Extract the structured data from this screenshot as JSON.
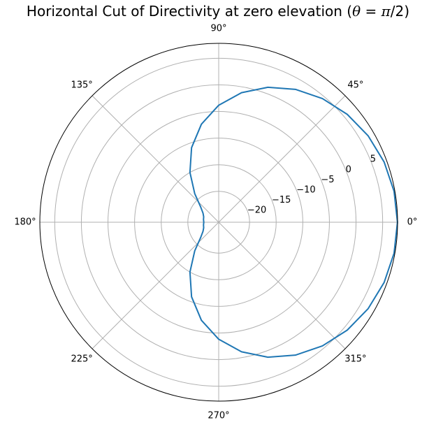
{
  "chart_data": {
    "type": "polar-line",
    "title": {
      "prefix": "Horizontal Cut of Directivity at zero elevation (",
      "math_symbol": "θ",
      "math_rest": " = ",
      "math_pi": "π",
      "math_end": "/2)"
    },
    "angle_unit": "degrees",
    "angle_ticks": [
      0,
      45,
      90,
      135,
      180,
      225,
      270,
      315
    ],
    "angle_tick_labels": [
      "0°",
      "45°",
      "90°",
      "135°",
      "180°",
      "225°",
      "270°",
      "315°"
    ],
    "r_ticks": [
      -20,
      -15,
      -10,
      -5,
      0,
      5
    ],
    "r_tick_labels": [
      "−20",
      "−15",
      "−10",
      "−5",
      "0",
      "5"
    ],
    "rlim": [
      -25.8,
      7.8
    ],
    "grid": true,
    "series": [
      {
        "color": "#1f77b4",
        "points": [
          [
            0,
            7.78
          ],
          [
            10,
            7.65
          ],
          [
            20,
            7.27
          ],
          [
            30,
            6.63
          ],
          [
            40,
            5.72
          ],
          [
            50,
            4.52
          ],
          [
            60,
            3.02
          ],
          [
            70,
            1.17
          ],
          [
            80,
            -1.09
          ],
          [
            90,
            -3.83
          ],
          [
            100,
            -7.1
          ],
          [
            110,
            -10.9
          ],
          [
            120,
            -15.0
          ],
          [
            130,
            -18.8
          ],
          [
            140,
            -21.4
          ],
          [
            150,
            -22.4
          ],
          [
            160,
            -22.8
          ],
          [
            170,
            -22.9
          ],
          [
            180,
            -23.0
          ],
          [
            190,
            -22.9
          ],
          [
            200,
            -22.8
          ],
          [
            210,
            -22.4
          ],
          [
            220,
            -21.4
          ],
          [
            230,
            -18.8
          ],
          [
            240,
            -15.0
          ],
          [
            250,
            -10.9
          ],
          [
            260,
            -7.1
          ],
          [
            270,
            -3.83
          ],
          [
            280,
            -1.09
          ],
          [
            290,
            1.17
          ],
          [
            300,
            3.02
          ],
          [
            310,
            4.52
          ],
          [
            320,
            5.72
          ],
          [
            330,
            6.63
          ],
          [
            340,
            7.27
          ],
          [
            350,
            7.65
          ],
          [
            360,
            7.78
          ]
        ]
      }
    ],
    "colors": {
      "series": "#1f77b4",
      "grid": "#b0b0b0",
      "frame": "#000000"
    }
  }
}
